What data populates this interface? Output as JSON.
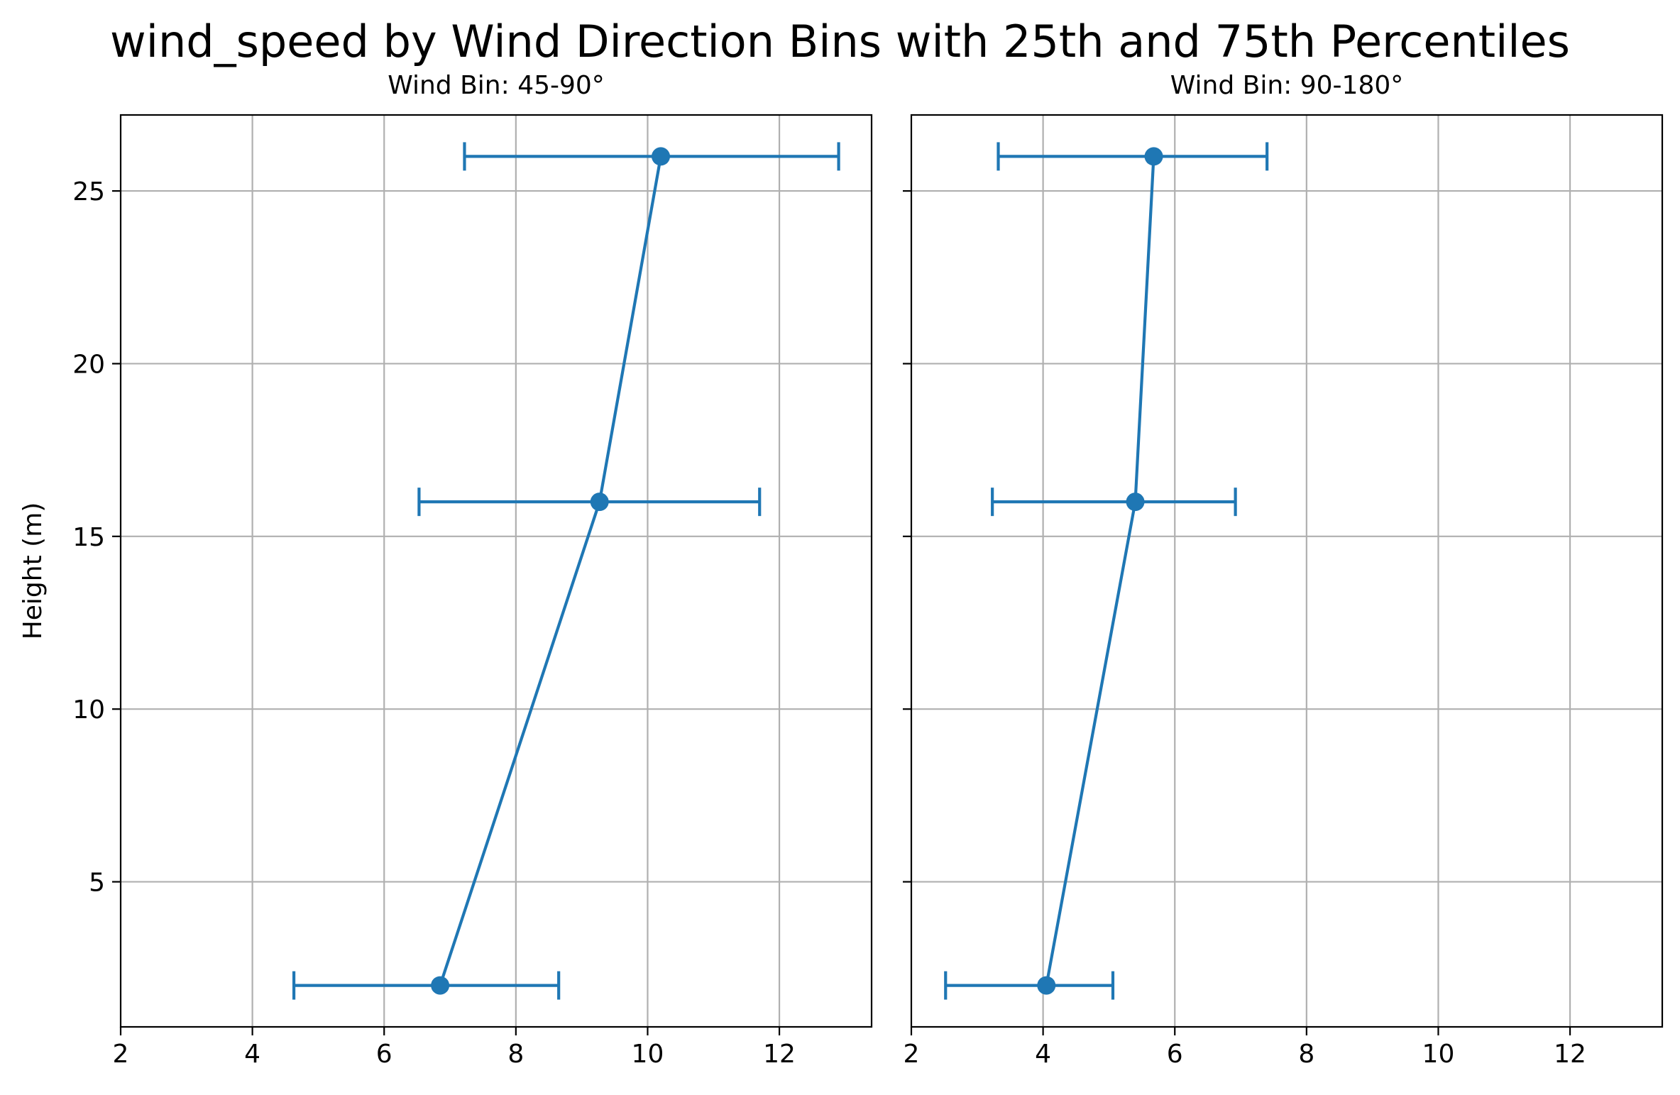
{
  "title": "wind_speed by Wind Direction Bins with 25th and 75th Percentiles",
  "colors": {
    "series": "#1f77b4",
    "grid": "#b0b0b0",
    "axes": "#000000"
  },
  "chart_data": [
    {
      "type": "line",
      "title": "Wind Bin: 45-90°",
      "xlabel": "",
      "ylabel": "Height (m)",
      "xlim": [
        2,
        13.4
      ],
      "ylim": [
        0.8,
        27.2
      ],
      "xticks": [
        2,
        4,
        6,
        8,
        10,
        12
      ],
      "yticks": [
        5,
        10,
        15,
        20,
        25
      ],
      "grid": true,
      "series": [
        {
          "points": [
            {
              "x": 6.85,
              "y": 2,
              "p25": 4.63,
              "p75": 8.65
            },
            {
              "x": 9.27,
              "y": 16,
              "p25": 6.53,
              "p75": 11.7
            },
            {
              "x": 10.2,
              "y": 26,
              "p25": 7.22,
              "p75": 12.9
            }
          ]
        }
      ]
    },
    {
      "type": "line",
      "title": "Wind Bin: 90-180°",
      "xlabel": "",
      "ylabel": "",
      "xlim": [
        2,
        13.4
      ],
      "ylim": [
        0.8,
        27.2
      ],
      "xticks": [
        2,
        4,
        6,
        8,
        10,
        12
      ],
      "yticks": [
        5,
        10,
        15,
        20,
        25
      ],
      "grid": true,
      "series": [
        {
          "points": [
            {
              "x": 4.05,
              "y": 2,
              "p25": 2.52,
              "p75": 5.06
            },
            {
              "x": 5.4,
              "y": 16,
              "p25": 3.23,
              "p75": 6.92
            },
            {
              "x": 5.68,
              "y": 26,
              "p25": 3.32,
              "p75": 7.4
            }
          ]
        }
      ]
    }
  ]
}
